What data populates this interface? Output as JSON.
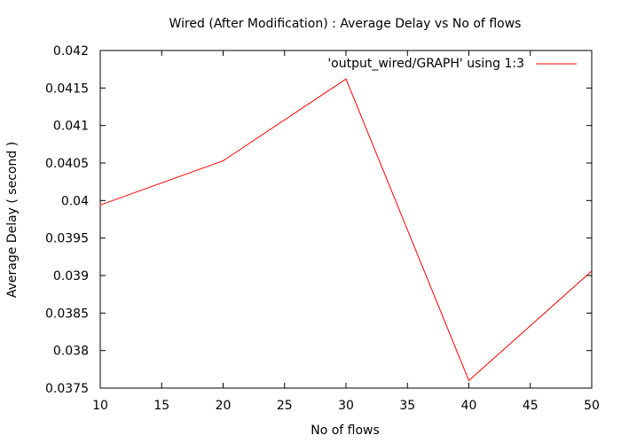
{
  "chart_data": {
    "type": "line",
    "title": "Wired (After Modification) : Average Delay vs No of flows",
    "xlabel": "No of flows",
    "ylabel": "Average Delay ( second )",
    "xlim": [
      10,
      50
    ],
    "ylim": [
      0.0375,
      0.042
    ],
    "x_ticks": [
      10,
      15,
      20,
      25,
      30,
      35,
      40,
      45,
      50
    ],
    "x_tick_labels": [
      "10",
      "15",
      "20",
      "25",
      "30",
      "35",
      "40",
      "45",
      "50"
    ],
    "y_ticks": [
      0.0375,
      0.038,
      0.0385,
      0.039,
      0.0395,
      0.04,
      0.0405,
      0.041,
      0.0415,
      0.042
    ],
    "y_tick_labels": [
      "0.0375",
      "0.038",
      "0.0385",
      "0.039",
      "0.0395",
      "0.04",
      "0.0405",
      "0.041",
      "0.0415",
      "0.042"
    ],
    "grid": false,
    "legend_position": "top-right",
    "series": [
      {
        "name": "'output_wired/GRAPH' using 1:3",
        "color": "#ff0000",
        "x": [
          10,
          20,
          30,
          40,
          50
        ],
        "y": [
          0.03994,
          0.04053,
          0.04162,
          0.0376,
          0.03906
        ]
      }
    ]
  }
}
